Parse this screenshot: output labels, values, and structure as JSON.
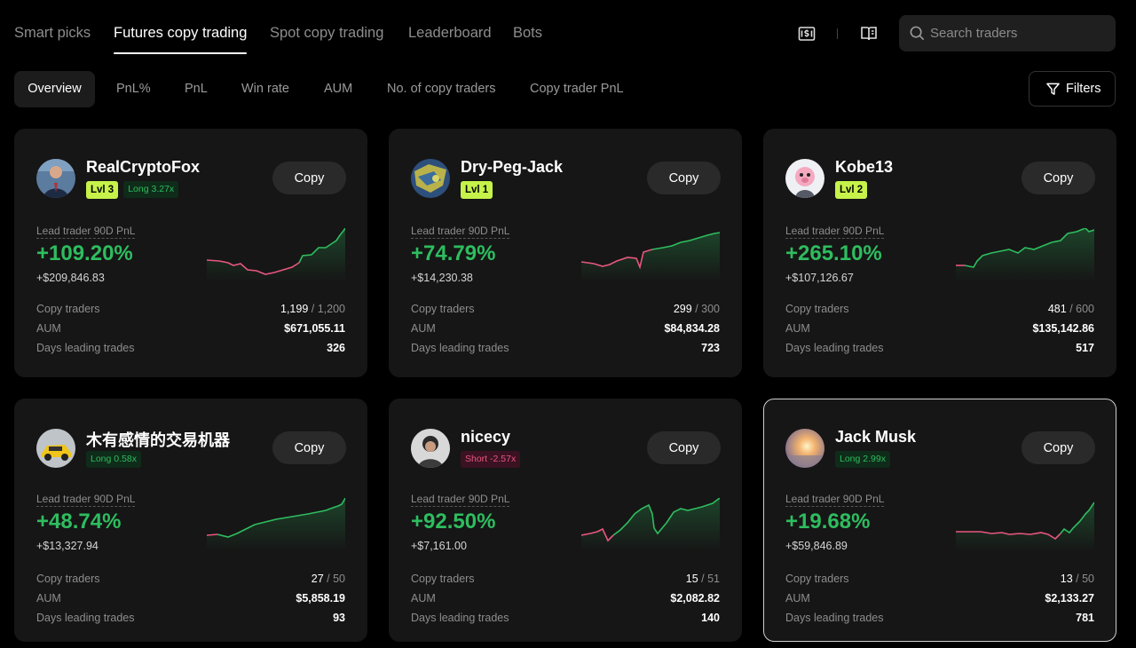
{
  "top_tabs": [
    "Smart picks",
    "Futures copy trading",
    "Spot copy trading",
    "Leaderboard",
    "Bots"
  ],
  "search": {
    "placeholder": "Search traders"
  },
  "sub_tabs": [
    "Overview",
    "PnL%",
    "PnL",
    "Win rate",
    "AUM",
    "No. of copy traders",
    "Copy trader PnL"
  ],
  "filters_label": "Filters",
  "labels": {
    "pnl_90d": "Lead trader 90D PnL",
    "copy_traders": "Copy traders",
    "aum": "AUM",
    "days_leading": "Days leading trades",
    "copy_button": "Copy"
  },
  "colors": {
    "up": "#2ebd5f",
    "down": "#e9567f",
    "level_badge": "#c6f24a"
  },
  "traders": [
    {
      "name": "RealCryptoFox",
      "level": "Lvl 3",
      "position": "Long 3.27x",
      "position_type": "long",
      "avatar": "man-in-suit-avatar",
      "pnl_pct": "+109.20%",
      "pnl_abs": "+$209,846.83",
      "copy_traders": "1,199",
      "copy_traders_max": "/ 1,200",
      "aum": "$671,055.11",
      "days_leading": "326"
    },
    {
      "name": "Dry-Peg-Jack",
      "level": "Lvl 1",
      "position": "",
      "position_type": "",
      "avatar": "map-avatar",
      "pnl_pct": "+74.79%",
      "pnl_abs": "+$14,230.38",
      "copy_traders": "299",
      "copy_traders_max": "/ 300",
      "aum": "$84,834.28",
      "days_leading": "723"
    },
    {
      "name": "Kobe13",
      "level": "Lvl 2",
      "position": "",
      "position_type": "",
      "avatar": "cartoon-pig-avatar",
      "pnl_pct": "+265.10%",
      "pnl_abs": "+$107,126.67",
      "copy_traders": "481",
      "copy_traders_max": "/ 600",
      "aum": "$135,142.86",
      "days_leading": "517"
    },
    {
      "name": "木有感情的交易机器",
      "level": "",
      "position": "Long 0.58x",
      "position_type": "long",
      "avatar": "yellow-car-avatar",
      "pnl_pct": "+48.74%",
      "pnl_abs": "+$13,327.94",
      "copy_traders": "27",
      "copy_traders_max": "/ 50",
      "aum": "$5,858.19",
      "days_leading": "93"
    },
    {
      "name": "nicecy",
      "level": "",
      "position": "Short -2.57x",
      "position_type": "short",
      "avatar": "person-avatar",
      "pnl_pct": "+92.50%",
      "pnl_abs": "+$7,161.00",
      "copy_traders": "15",
      "copy_traders_max": "/ 51",
      "aum": "$2,082.82",
      "days_leading": "140"
    },
    {
      "name": "Jack Musk",
      "level": "",
      "position": "Long 2.99x",
      "position_type": "long",
      "avatar": "sunset-avatar",
      "pnl_pct": "+19.68%",
      "pnl_abs": "+$59,846.89",
      "copy_traders": "13",
      "copy_traders_max": "/ 50",
      "aum": "$2,133.27",
      "days_leading": "781"
    }
  ]
}
